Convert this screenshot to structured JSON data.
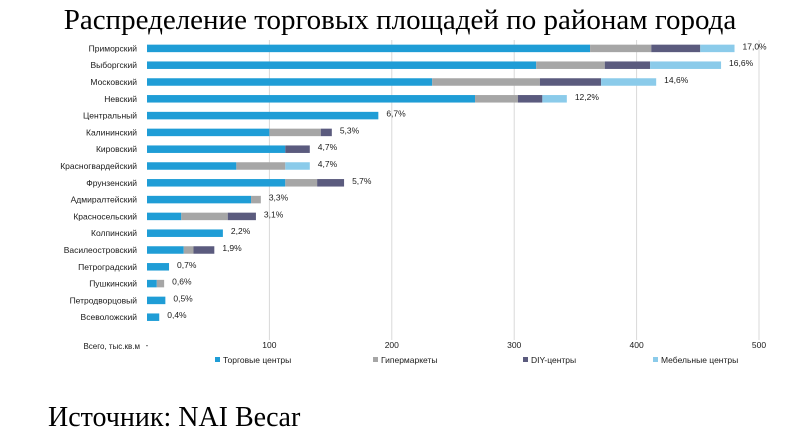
{
  "title": "Распределение торговых площадей по районам города",
  "source": "Источник: NAI Becar",
  "chart_data": {
    "type": "bar",
    "orientation": "horizontal",
    "stacked": true,
    "categories": [
      "Приморский",
      "Выборгский",
      "Московский",
      "Невский",
      "Центральный",
      "Калининский",
      "Кировский",
      "Красногвардейский",
      "Фрунзенский",
      "Адмиралтейский",
      "Красносельский",
      "Колпинский",
      "Василеостровский",
      "Петроградский",
      "Пушкинский",
      "Петродворцовый",
      "Всеволожский"
    ],
    "series": [
      {
        "name": "Торговые центры",
        "color": "#1F9DD6",
        "values": [
          362,
          318,
          233,
          268,
          189,
          100,
          113,
          73,
          113,
          85,
          28,
          62,
          30,
          18,
          8,
          15,
          10
        ]
      },
      {
        "name": "Гипермаркеты",
        "color": "#A6A6A6",
        "values": [
          50,
          56,
          88,
          35,
          0,
          42,
          0,
          40,
          26,
          8,
          38,
          0,
          8,
          0,
          6,
          0,
          0
        ]
      },
      {
        "name": "DIY-центры",
        "color": "#5B5B7E",
        "values": [
          40,
          37,
          50,
          20,
          0,
          9,
          20,
          0,
          22,
          0,
          23,
          0,
          17,
          0,
          0,
          0,
          0
        ]
      },
      {
        "name": "Мебельные центры",
        "color": "#8BCBEA",
        "values": [
          28,
          58,
          45,
          20,
          0,
          0,
          0,
          20,
          0,
          0,
          0,
          0,
          0,
          0,
          0,
          0,
          0
        ]
      }
    ],
    "data_labels": [
      "17,0%",
      "16,6%",
      "14,6%",
      "12,2%",
      "6,7%",
      "5,3%",
      "4,7%",
      "4,7%",
      "5,7%",
      "3,3%",
      "3,1%",
      "2,2%",
      "1,9%",
      "0,7%",
      "0,6%",
      "0,5%",
      "0,4%"
    ],
    "xlabel": "Всего, тыс.кв.м",
    "x_ticks": [
      "100",
      "200",
      "300",
      "400",
      "500"
    ],
    "xlim": [
      0,
      500
    ],
    "legend": "bottom",
    "grid": "vertical"
  }
}
